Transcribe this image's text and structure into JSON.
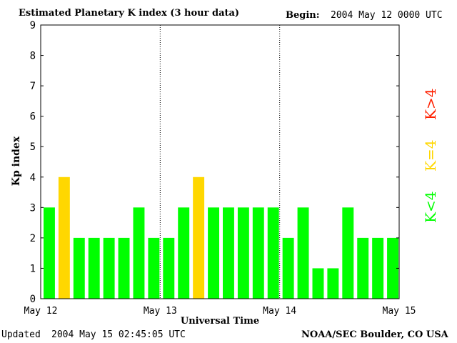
{
  "header": {
    "title": "Estimated Planetary K index (3 hour data)",
    "begin_label": "Begin:",
    "begin_value": "2004 May 12 0000 UTC"
  },
  "footer": {
    "updated_label": "Updated",
    "updated_value": "2004 May 15 02:45:05 UTC",
    "source": "NOAA/SEC Boulder, CO USA"
  },
  "legend": {
    "below": "K<4",
    "equal": "K=4",
    "above": "K>4"
  },
  "colors": {
    "below": "#00ff00",
    "equal": "#ffd700",
    "above": "#ff2000",
    "axis": "#000000"
  },
  "chart_data": {
    "type": "bar",
    "title": "Estimated Planetary K index (3 hour data)",
    "xlabel": "Universal Time",
    "ylabel": "Kp index",
    "ylim": [
      0,
      9
    ],
    "yticks": [
      0,
      1,
      2,
      3,
      4,
      5,
      6,
      7,
      8,
      9
    ],
    "x_tick_labels": [
      "May 12",
      "May 13",
      "May 14",
      "May 15"
    ],
    "interval_hours": 3,
    "values": [
      3,
      4,
      2,
      2,
      2,
      2,
      3,
      2,
      2,
      3,
      4,
      3,
      3,
      3,
      3,
      3,
      2,
      3,
      1,
      1,
      3,
      2,
      2,
      2
    ],
    "day_separators": "dotted",
    "grid": false
  }
}
